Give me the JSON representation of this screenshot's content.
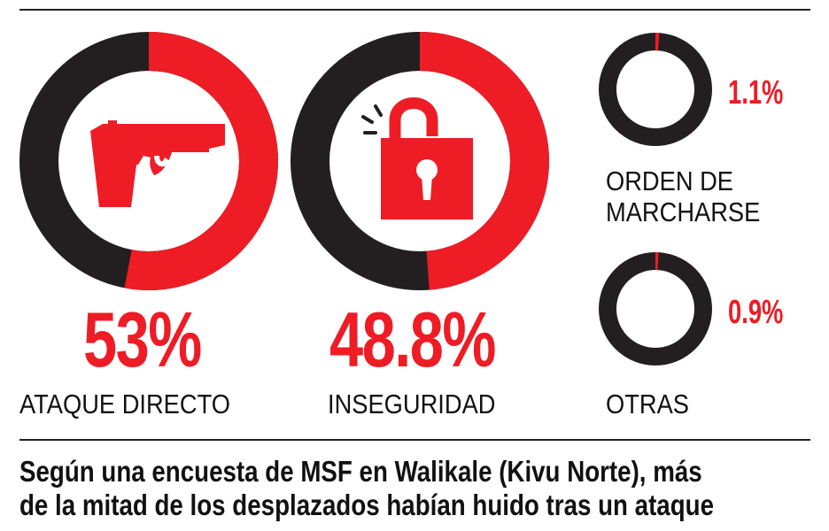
{
  "colors": {
    "accent": "#ee1c25",
    "dark": "#231f20",
    "text": "#111111"
  },
  "chart_data": {
    "type": "pie",
    "variant": "donut",
    "slices": [
      {
        "label": "ATAQUE DIRECTO",
        "value": 53,
        "display": "53%",
        "icon": "pistol-icon"
      },
      {
        "label": "INSEGURIDAD",
        "value": 48.8,
        "display": "48.8%",
        "icon": "open-padlock-icon"
      },
      {
        "label": "ORDEN DE MARCHARSE",
        "value": 1.1,
        "display": "1.1%"
      },
      {
        "label": "OTRAS",
        "value": 0.9,
        "display": "0.9%"
      }
    ]
  },
  "labels": {
    "ataque": "ATAQUE DIRECTO",
    "inseguridad": "INSEGURIDAD",
    "orden_line1": "ORDEN DE",
    "orden_line2": "MARCHARSE",
    "otras": "OTRAS"
  },
  "caption": {
    "line1": "Según una encuesta de MSF en Walikale (Kivu Norte), más",
    "line2": "de la mitad de los desplazados habían huido tras un ataque"
  }
}
